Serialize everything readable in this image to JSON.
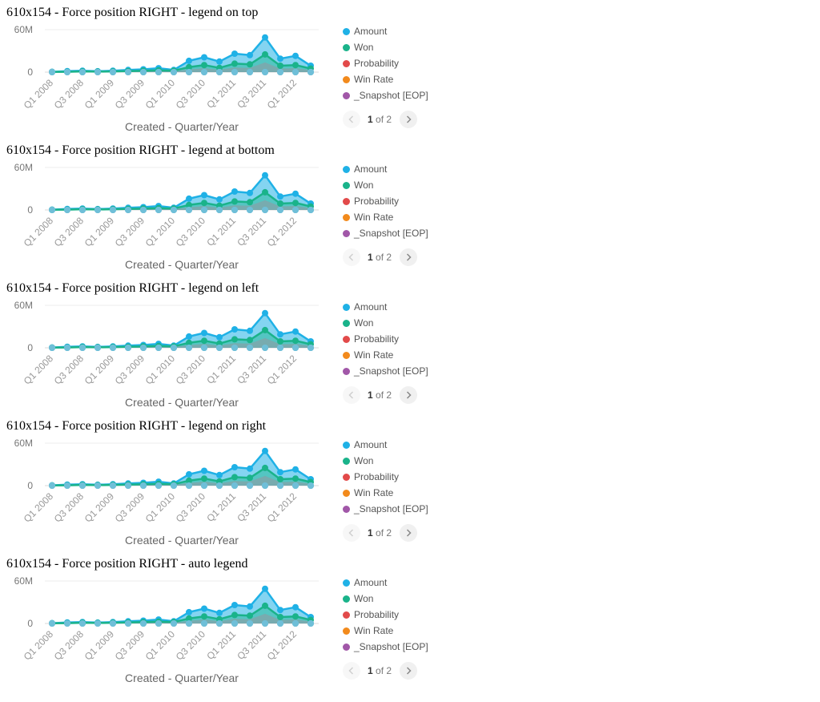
{
  "blocks": [
    {
      "title": "610x154 - Force position RIGHT - legend on top"
    },
    {
      "title": "610x154 - Force position RIGHT - legend at bottom"
    },
    {
      "title": "610x154 - Force position RIGHT - legend on left"
    },
    {
      "title": "610x154 - Force position RIGHT - legend on right"
    },
    {
      "title": "610x154 - Force position RIGHT - auto legend"
    }
  ],
  "legend": {
    "items": [
      {
        "label": "Amount",
        "color": "#1fb1e6"
      },
      {
        "label": "Won",
        "color": "#1ab38a"
      },
      {
        "label": "Probability",
        "color": "#e24a4a"
      },
      {
        "label": "Win Rate",
        "color": "#f28a1c"
      },
      {
        "label": "_Snapshot [EOP]",
        "color": "#a157a8"
      }
    ]
  },
  "pager": {
    "current": "1",
    "of_label": "of 2"
  },
  "icons": {
    "prev": "chevron-left-icon",
    "next": "chevron-right-icon"
  },
  "chart_data": {
    "type": "area",
    "xlabel": "Created - Quarter/Year",
    "ylabel": "",
    "ylim": [
      0,
      60000000
    ],
    "y_ticks": [
      {
        "value": 0,
        "label": "0"
      },
      {
        "value": 60000000,
        "label": "60M"
      }
    ],
    "tick_labels": [
      "Q1 2008",
      "Q3 2008",
      "Q1 2009",
      "Q3 2009",
      "Q1 2010",
      "Q3 2010",
      "Q1 2011",
      "Q3 2011",
      "Q1 2012"
    ],
    "tick_indices": [
      0,
      2,
      4,
      6,
      8,
      10,
      12,
      14,
      16
    ],
    "categories": [
      "Q1 2008",
      "Q2 2008",
      "Q3 2008",
      "Q4 2008",
      "Q1 2009",
      "Q2 2009",
      "Q3 2009",
      "Q4 2009",
      "Q1 2010",
      "Q2 2010",
      "Q3 2010",
      "Q4 2010",
      "Q1 2011",
      "Q2 2011",
      "Q3 2011",
      "Q4 2011",
      "Q1 2012",
      "Q2 2012"
    ],
    "series": [
      {
        "name": "Amount",
        "color": "#1fb1e6",
        "values": [
          500000,
          1500000,
          2000000,
          1200000,
          2000000,
          3000000,
          4000000,
          5500000,
          3000000,
          16000000,
          21000000,
          15000000,
          26000000,
          24000000,
          49000000,
          19000000,
          23000000,
          9000000
        ]
      },
      {
        "name": "Won",
        "color": "#1ab38a",
        "values": [
          200000,
          500000,
          1000000,
          700000,
          1000000,
          1500000,
          2000000,
          2500000,
          2000000,
          7000000,
          10000000,
          6000000,
          12000000,
          11000000,
          25000000,
          9000000,
          10000000,
          5000000
        ]
      },
      {
        "name": "Probability",
        "color": "#e24a4a",
        "values": [
          0,
          0,
          0,
          0,
          0,
          0,
          0,
          0,
          0,
          0,
          0,
          0,
          0,
          0,
          0,
          0,
          0,
          0
        ]
      },
      {
        "name": "Win Rate",
        "color": "#f28a1c",
        "values": [
          0,
          0,
          0,
          0,
          0,
          0,
          0,
          0,
          0,
          0,
          0,
          0,
          0,
          0,
          0,
          0,
          0,
          0
        ]
      },
      {
        "name": "_Snapshot [EOP]",
        "color": "#a157a8",
        "values": [
          0,
          0,
          0,
          0,
          0,
          0,
          0,
          0,
          0,
          0,
          0,
          0,
          0,
          0,
          0,
          0,
          0,
          0
        ]
      }
    ],
    "grid": true,
    "legend_position": "right"
  }
}
